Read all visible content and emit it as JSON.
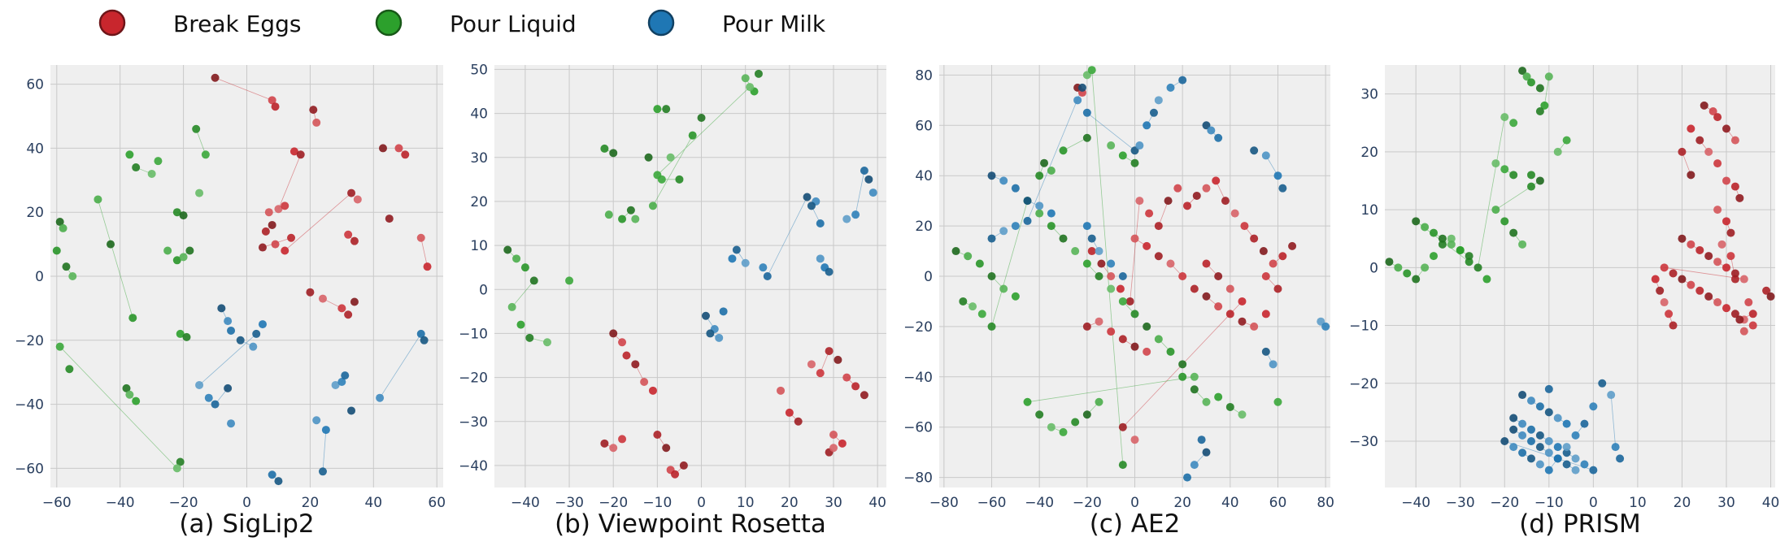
{
  "legend": {
    "items": [
      {
        "label": "Break Eggs",
        "color": "#c8262d"
      },
      {
        "label": "Pour Liquid",
        "color": "#2ca02c"
      },
      {
        "label": "Pour Milk",
        "color": "#1f77b4"
      }
    ]
  },
  "chart_data": [
    {
      "type": "scatter",
      "caption": "(a) SigLip2",
      "xlim": [
        -62,
        62
      ],
      "ylim": [
        -66,
        66
      ],
      "xticks": [
        -60,
        -40,
        -20,
        0,
        20,
        40,
        60
      ],
      "yticks": [
        -60,
        -40,
        -20,
        0,
        20,
        40,
        60
      ],
      "grid": true,
      "series": [
        {
          "name": "Break Eggs",
          "color": "#c8262d",
          "x": [
            -10,
            8,
            9,
            21,
            22,
            15,
            17,
            10,
            12,
            6,
            8,
            9,
            14,
            5,
            7,
            12,
            33,
            35,
            32,
            34,
            43,
            48,
            50,
            45,
            55,
            57,
            20,
            24,
            30,
            32,
            34
          ],
          "y": [
            62,
            55,
            53,
            52,
            48,
            39,
            38,
            21,
            22,
            14,
            16,
            10,
            12,
            9,
            20,
            8,
            26,
            24,
            13,
            11,
            40,
            40,
            38,
            18,
            12,
            3,
            -5,
            -7,
            -10,
            -12,
            -8
          ]
        },
        {
          "name": "Pour Liquid",
          "color": "#2ca02c",
          "x": [
            -59,
            -58,
            -60,
            -57,
            -55,
            -37,
            -35,
            -30,
            -28,
            -22,
            -20,
            -25,
            -22,
            -18,
            -20,
            -21,
            -19,
            -15,
            -13,
            -16,
            -43,
            -47,
            -36,
            -38,
            -37,
            -35,
            -21,
            -22,
            -59,
            -56
          ],
          "y": [
            17,
            15,
            8,
            3,
            0,
            38,
            34,
            32,
            36,
            20,
            19,
            8,
            5,
            8,
            6,
            -18,
            -19,
            26,
            38,
            46,
            10,
            24,
            -13,
            -35,
            -37,
            -39,
            -58,
            -60,
            -22,
            -29
          ]
        },
        {
          "name": "Pour Milk",
          "color": "#1f77b4",
          "x": [
            -8,
            -6,
            -5,
            -2,
            2,
            5,
            3,
            -15,
            -12,
            -10,
            -6,
            -5,
            8,
            10,
            22,
            25,
            24,
            28,
            30,
            31,
            33,
            42,
            55,
            56
          ],
          "y": [
            -10,
            -14,
            -17,
            -20,
            -22,
            -15,
            -18,
            -34,
            -38,
            -40,
            -35,
            -46,
            -62,
            -64,
            -45,
            -48,
            -61,
            -34,
            -33,
            -31,
            -42,
            -38,
            -18,
            -20
          ]
        }
      ]
    },
    {
      "type": "scatter",
      "caption": "(b) Viewpoint Rosetta",
      "xlim": [
        -47,
        42
      ],
      "ylim": [
        -45,
        51
      ],
      "xticks": [
        -40,
        -30,
        -20,
        -10,
        0,
        10,
        20,
        30,
        40
      ],
      "yticks": [
        -40,
        -30,
        -20,
        -10,
        0,
        10,
        20,
        30,
        40,
        50
      ],
      "grid": true,
      "series": [
        {
          "name": "Break Eggs",
          "color": "#c8262d",
          "x": [
            -20,
            -18,
            -17,
            -15,
            -13,
            -11,
            -22,
            -20,
            -18,
            -10,
            -8,
            -7,
            -6,
            -4,
            18,
            20,
            22,
            25,
            27,
            29,
            31,
            33,
            35,
            37,
            30,
            32,
            29,
            30
          ],
          "y": [
            -10,
            -12,
            -15,
            -17,
            -21,
            -23,
            -35,
            -36,
            -34,
            -33,
            -36,
            -41,
            -42,
            -40,
            -23,
            -28,
            -30,
            -17,
            -19,
            -14,
            -16,
            -20,
            -22,
            -24,
            -33,
            -35,
            -37,
            -36
          ]
        },
        {
          "name": "Pour Liquid",
          "color": "#2ca02c",
          "x": [
            -44,
            -42,
            -40,
            -38,
            -43,
            -41,
            -39,
            -35,
            -30,
            -22,
            -20,
            -21,
            -18,
            -16,
            -15,
            -10,
            -8,
            -7,
            -9,
            -5,
            -12,
            -11,
            -2,
            0,
            10,
            12,
            13,
            11,
            -10
          ],
          "y": [
            9,
            7,
            5,
            2,
            -4,
            -8,
            -11,
            -12,
            2,
            32,
            31,
            17,
            16,
            18,
            16,
            41,
            41,
            30,
            25,
            25,
            30,
            19,
            35,
            39,
            48,
            45,
            49,
            46,
            26
          ]
        },
        {
          "name": "Pour Milk",
          "color": "#1f77b4",
          "x": [
            1,
            3,
            5,
            2,
            4,
            7,
            8,
            10,
            14,
            15,
            24,
            26,
            27,
            25,
            27,
            28,
            29,
            33,
            35,
            37,
            38,
            39
          ],
          "y": [
            -6,
            -9,
            -5,
            -10,
            -11,
            7,
            9,
            6,
            5,
            3,
            21,
            20,
            15,
            19,
            7,
            5,
            4,
            16,
            17,
            27,
            25,
            22
          ]
        }
      ]
    },
    {
      "type": "scatter",
      "caption": "(c) AE2",
      "xlim": [
        -82,
        82
      ],
      "ylim": [
        -84,
        84
      ],
      "xticks": [
        -80,
        -60,
        -40,
        -20,
        0,
        20,
        40,
        60,
        80
      ],
      "yticks": [
        -80,
        -60,
        -40,
        -20,
        0,
        20,
        40,
        60,
        80
      ],
      "grid": true,
      "series": [
        {
          "name": "Break Eggs",
          "color": "#c8262d",
          "x": [
            -24,
            -22,
            -18,
            -14,
            -10,
            -6,
            -2,
            2,
            6,
            10,
            14,
            18,
            22,
            26,
            30,
            34,
            38,
            42,
            46,
            50,
            54,
            58,
            62,
            66,
            0,
            5,
            10,
            15,
            20,
            25,
            30,
            35,
            40,
            45,
            50,
            55,
            -20,
            -15,
            -10,
            -5,
            0,
            5,
            30,
            35,
            40,
            45,
            -5,
            0,
            55,
            60
          ],
          "y": [
            75,
            73,
            10,
            5,
            0,
            -5,
            -10,
            30,
            25,
            20,
            30,
            35,
            28,
            32,
            35,
            38,
            30,
            25,
            20,
            15,
            10,
            5,
            8,
            12,
            15,
            12,
            8,
            5,
            0,
            -5,
            -8,
            -12,
            -15,
            -18,
            -20,
            -15,
            -20,
            -18,
            -22,
            -25,
            -28,
            -30,
            5,
            0,
            -5,
            -10,
            -60,
            -65,
            0,
            -5
          ]
        },
        {
          "name": "Pour Liquid",
          "color": "#2ca02c",
          "x": [
            -75,
            -70,
            -65,
            -60,
            -55,
            -50,
            -72,
            -68,
            -64,
            -60,
            -45,
            -40,
            -35,
            -30,
            -25,
            -20,
            -15,
            -10,
            -5,
            0,
            5,
            10,
            15,
            20,
            25,
            -45,
            -40,
            -35,
            -30,
            -25,
            -20,
            -15,
            20,
            25,
            30,
            35,
            40,
            45,
            60,
            -40,
            -38,
            -35,
            -30,
            -20,
            -10,
            -5,
            0,
            -20,
            -18,
            -5
          ],
          "y": [
            10,
            8,
            5,
            0,
            -5,
            -8,
            -10,
            -12,
            -15,
            -20,
            30,
            25,
            20,
            15,
            10,
            5,
            0,
            -5,
            -10,
            -15,
            -20,
            -25,
            -30,
            -35,
            -40,
            -50,
            -55,
            -60,
            -62,
            -58,
            -55,
            -50,
            -40,
            -45,
            -50,
            -48,
            -52,
            -55,
            -50,
            40,
            45,
            42,
            50,
            55,
            52,
            48,
            45,
            80,
            82,
            -75
          ]
        },
        {
          "name": "Pour Milk",
          "color": "#1f77b4",
          "x": [
            -60,
            -55,
            -50,
            -45,
            -40,
            -35,
            -60,
            -55,
            -50,
            -45,
            -22,
            -24,
            -20,
            0,
            2,
            5,
            8,
            10,
            15,
            20,
            30,
            32,
            35,
            50,
            55,
            60,
            62,
            78,
            80,
            28,
            30,
            25,
            22,
            55,
            58,
            -20,
            -18,
            -15,
            -10,
            -5
          ],
          "y": [
            40,
            38,
            35,
            30,
            28,
            25,
            15,
            18,
            20,
            22,
            75,
            70,
            65,
            50,
            52,
            60,
            65,
            70,
            75,
            78,
            60,
            58,
            55,
            50,
            48,
            40,
            35,
            -18,
            -20,
            -65,
            -70,
            -75,
            -80,
            -30,
            -35,
            20,
            15,
            10,
            5,
            0
          ]
        }
      ]
    },
    {
      "type": "scatter",
      "caption": "(d) PRISM",
      "xlim": [
        -47,
        41
      ],
      "ylim": [
        -38,
        35
      ],
      "xticks": [
        -40,
        -30,
        -20,
        -10,
        0,
        10,
        20,
        30,
        40
      ],
      "yticks": [
        -30,
        -20,
        -10,
        0,
        10,
        20,
        30
      ],
      "grid": true,
      "series": [
        {
          "name": "Break Eggs",
          "color": "#c8262d",
          "x": [
            25,
            27,
            28,
            30,
            32,
            22,
            24,
            26,
            28,
            20,
            22,
            30,
            32,
            33,
            28,
            30,
            31,
            29,
            31,
            32,
            20,
            22,
            24,
            26,
            28,
            30,
            32,
            34,
            16,
            18,
            20,
            22,
            24,
            26,
            28,
            30,
            32,
            34,
            36,
            39,
            40,
            35,
            36,
            33,
            34,
            14,
            15,
            16,
            17,
            18
          ],
          "y": [
            28,
            27,
            26,
            24,
            22,
            24,
            22,
            20,
            18,
            20,
            16,
            15,
            14,
            12,
            10,
            8,
            6,
            4,
            2,
            -2,
            5,
            4,
            3,
            2,
            1,
            0,
            -1,
            -2,
            0,
            -1,
            -2,
            -3,
            -4,
            -5,
            -6,
            -7,
            -8,
            -9,
            -10,
            -4,
            -5,
            -6,
            -8,
            -9,
            -11,
            -2,
            -4,
            -6,
            -8,
            -10
          ]
        },
        {
          "name": "Pour Liquid",
          "color": "#2ca02c",
          "x": [
            -46,
            -44,
            -42,
            -40,
            -38,
            -36,
            -34,
            -32,
            -30,
            -28,
            -40,
            -38,
            -36,
            -34,
            -32,
            -30,
            -28,
            -22,
            -20,
            -18,
            -16,
            -15,
            -14,
            -12,
            -10,
            -11,
            -12,
            -8,
            -6,
            -14,
            -12,
            -22,
            -20,
            -18,
            -16,
            -24,
            -26,
            -20,
            -18,
            -14
          ],
          "y": [
            1,
            0,
            -1,
            -2,
            0,
            2,
            4,
            5,
            3,
            1,
            8,
            7,
            6,
            5,
            4,
            3,
            2,
            18,
            17,
            16,
            34,
            33,
            32,
            31,
            33,
            28,
            27,
            20,
            22,
            16,
            15,
            10,
            8,
            6,
            4,
            -2,
            0,
            26,
            25,
            14
          ]
        },
        {
          "name": "Pour Milk",
          "color": "#1f77b4",
          "x": [
            -18,
            -16,
            -14,
            -12,
            -10,
            -8,
            -6,
            -4,
            -2,
            0,
            -20,
            -18,
            -16,
            -14,
            -12,
            -10,
            -8,
            -6,
            -4,
            -2,
            -16,
            -14,
            -12,
            -10,
            -8,
            -6,
            2,
            4,
            5,
            6,
            -18,
            -16,
            -14,
            -12,
            -10,
            -8,
            -6,
            -4,
            0,
            -10
          ],
          "y": [
            -26,
            -27,
            -28,
            -29,
            -30,
            -31,
            -32,
            -33,
            -34,
            -35,
            -30,
            -31,
            -32,
            -33,
            -34,
            -35,
            -33,
            -31,
            -29,
            -27,
            -22,
            -23,
            -24,
            -25,
            -26,
            -27,
            -20,
            -22,
            -31,
            -33,
            -28,
            -29,
            -30,
            -31,
            -32,
            -33,
            -34,
            -35,
            -24,
            -21
          ]
        }
      ]
    }
  ]
}
